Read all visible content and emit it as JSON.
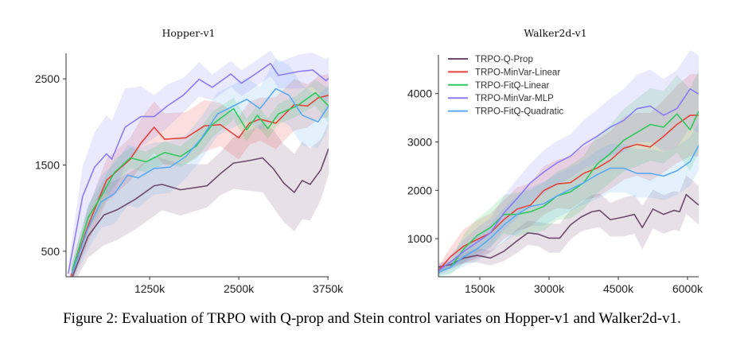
{
  "caption": "Figure 2: Evaluation of TRPO with Q-prop and Stein control variates on Hopper-v1 and Walker2d-v1.",
  "legend": {
    "placement": "top-left",
    "chart": "Walker2d-v1"
  },
  "colors": {
    "TRPO-Q-Prop": "#6e4a6e",
    "TRPO-MinVar-Linear": "#e6433a",
    "TRPO-FitQ-Linear": "#2ec95a",
    "TRPO-MinVar-MLP": "#8b7cf6",
    "TRPO-FitQ-Quadratic": "#5aaaf6"
  },
  "chart_data": [
    {
      "type": "line",
      "title": "Hopper-v1",
      "xlabel": "",
      "ylabel": "",
      "xlim": [
        78,
        3760
      ],
      "ylim": [
        204,
        2796
      ],
      "xticks": [
        1250,
        2500,
        3750
      ],
      "xtick_labels": [
        "1250k",
        "2500k",
        "3750k"
      ],
      "yticks": [
        500,
        1500,
        2500
      ],
      "ytick_labels": [
        "500",
        "1500",
        "2500"
      ],
      "grid": false,
      "series": [
        {
          "name": "TRPO-Q-Prop",
          "x": [
            163,
            386,
            608,
            794,
            1053,
            1313,
            1424,
            1683,
            2055,
            2240,
            2426,
            2649,
            2834,
            2982,
            3131,
            3279,
            3390,
            3501,
            3650,
            3760
          ],
          "y": [
            194,
            673,
            920,
            981,
            1105,
            1259,
            1275,
            1213,
            1259,
            1398,
            1522,
            1552,
            1583,
            1460,
            1290,
            1182,
            1321,
            1275,
            1444,
            1691
          ],
          "band": [
            100,
            250,
            350,
            350,
            350,
            350,
            300,
            300,
            250,
            250,
            300,
            350,
            400,
            450,
            450,
            450,
            450,
            420,
            350,
            300
          ]
        },
        {
          "name": "TRPO-MinVar-Linear",
          "x": [
            145,
            386,
            645,
            831,
            979,
            1127,
            1313,
            1461,
            1758,
            2018,
            2241,
            2500,
            2649,
            2797,
            3019,
            3279,
            3464,
            3612,
            3760
          ],
          "y": [
            210,
            796,
            1321,
            1460,
            1568,
            1753,
            1938,
            1799,
            1815,
            1954,
            1969,
            1815,
            1985,
            2031,
            1985,
            2200,
            2185,
            2278,
            2309
          ],
          "band": [
            100,
            200,
            250,
            250,
            250,
            280,
            300,
            300,
            300,
            300,
            250,
            250,
            250,
            250,
            300,
            300,
            250,
            250,
            250
          ]
        },
        {
          "name": "TRPO-FitQ-Linear",
          "x": [
            163,
            386,
            571,
            757,
            979,
            1201,
            1461,
            1683,
            1906,
            2129,
            2426,
            2611,
            2760,
            2908,
            3056,
            3316,
            3575,
            3760
          ],
          "y": [
            272,
            889,
            1136,
            1414,
            1583,
            1537,
            1645,
            1599,
            1722,
            1969,
            2154,
            1907,
            2077,
            1923,
            2093,
            2185,
            2339,
            2185
          ],
          "band": [
            100,
            150,
            150,
            150,
            120,
            120,
            130,
            120,
            150,
            150,
            130,
            130,
            120,
            120,
            120,
            120,
            150,
            200
          ]
        },
        {
          "name": "TRPO-MinVar-MLP",
          "x": [
            108,
            311,
            478,
            645,
            720,
            905,
            1127,
            1313,
            1498,
            1721,
            1944,
            2129,
            2389,
            2537,
            2760,
            2945,
            3056,
            3353,
            3538,
            3724,
            3760
          ],
          "y": [
            240,
            1136,
            1475,
            1630,
            1568,
            1938,
            2062,
            2062,
            2185,
            2309,
            2494,
            2401,
            2556,
            2448,
            2571,
            2679,
            2540,
            2586,
            2602,
            2478,
            2509
          ],
          "band": [
            100,
            350,
            400,
            450,
            450,
            450,
            350,
            250,
            250,
            200,
            200,
            150,
            150,
            150,
            150,
            150,
            150,
            200,
            200,
            250,
            250
          ]
        },
        {
          "name": "TRPO-FitQ-Quadratic",
          "x": [
            163,
            386,
            571,
            757,
            942,
            1090,
            1313,
            1535,
            1758,
            1980,
            2203,
            2426,
            2611,
            2797,
            3019,
            3205,
            3390,
            3612,
            3760
          ],
          "y": [
            241,
            765,
            1074,
            1167,
            1383,
            1352,
            1460,
            1475,
            1599,
            1815,
            2093,
            2185,
            2262,
            2154,
            2386,
            2309,
            2077,
            2000,
            2185
          ],
          "band": [
            100,
            250,
            300,
            350,
            350,
            350,
            300,
            300,
            250,
            250,
            250,
            250,
            250,
            250,
            350,
            350,
            350,
            300,
            250
          ]
        }
      ]
    },
    {
      "type": "line",
      "title": "Walker2d-v1",
      "xlabel": "",
      "ylabel": "",
      "xlim": [
        603,
        6241
      ],
      "ylim": [
        213,
        4800
      ],
      "xticks": [
        1500,
        3000,
        4500,
        6000
      ],
      "xtick_labels": [
        "1500k",
        "3000k",
        "4500k",
        "6000k"
      ],
      "yticks": [
        1000,
        2000,
        3000,
        4000
      ],
      "ytick_labels": [
        "1000",
        "2000",
        "3000",
        "4000"
      ],
      "grid": false,
      "series": [
        {
          "name": "TRPO-Q-Prop",
          "x": [
            589,
            866,
            1154,
            1443,
            1731,
            2020,
            2308,
            2539,
            2770,
            3000,
            3231,
            3462,
            3693,
            3924,
            4097,
            4328,
            4616,
            4847,
            5020,
            5251,
            5482,
            5712,
            5828,
            5972,
            6241
          ],
          "y": [
            410,
            464,
            600,
            656,
            600,
            738,
            956,
            1120,
            1093,
            1011,
            1011,
            1284,
            1448,
            1557,
            1585,
            1393,
            1448,
            1503,
            1230,
            1612,
            1503,
            1585,
            1557,
            1913,
            1694
          ],
          "band": [
            80,
            80,
            100,
            150,
            150,
            200,
            250,
            250,
            250,
            300,
            300,
            300,
            300,
            350,
            350,
            350,
            400,
            400,
            450,
            400,
            400,
            400,
            400,
            400,
            400
          ]
        },
        {
          "name": "TRPO-MinVar-Linear",
          "x": [
            589,
            866,
            1154,
            1443,
            1731,
            2020,
            2308,
            2597,
            2885,
            3174,
            3462,
            3751,
            4039,
            4328,
            4616,
            4905,
            5193,
            5482,
            5770,
            6058,
            6241
          ],
          "y": [
            328,
            628,
            847,
            984,
            1120,
            1393,
            1612,
            1694,
            1995,
            2131,
            2158,
            2350,
            2459,
            2623,
            2869,
            2951,
            2896,
            3115,
            3361,
            3552,
            3552
          ],
          "band": [
            80,
            200,
            350,
            400,
            400,
            400,
            450,
            450,
            500,
            500,
            550,
            550,
            600,
            600,
            650,
            650,
            700,
            750,
            800,
            850,
            850
          ]
        },
        {
          "name": "TRPO-FitQ-Linear",
          "x": [
            589,
            866,
            1154,
            1443,
            1731,
            2020,
            2308,
            2597,
            2885,
            3174,
            3462,
            3751,
            4039,
            4328,
            4616,
            4905,
            5193,
            5482,
            5770,
            6058,
            6241
          ],
          "y": [
            300,
            410,
            792,
            1066,
            1230,
            1503,
            1503,
            1557,
            1667,
            1885,
            1967,
            2158,
            2541,
            2760,
            3033,
            3197,
            3361,
            3306,
            3579,
            3251,
            3634
          ],
          "band": [
            80,
            150,
            300,
            350,
            400,
            400,
            450,
            450,
            500,
            500,
            550,
            550,
            600,
            600,
            650,
            700,
            750,
            750,
            800,
            850,
            850
          ]
        },
        {
          "name": "TRPO-MinVar-MLP",
          "x": [
            589,
            866,
            1154,
            1443,
            1731,
            2020,
            2308,
            2597,
            2885,
            3174,
            3462,
            3751,
            4039,
            4328,
            4616,
            4905,
            5193,
            5482,
            5770,
            6058,
            6241
          ],
          "y": [
            328,
            519,
            738,
            929,
            1120,
            1530,
            1831,
            2158,
            2377,
            2568,
            2705,
            2951,
            3115,
            3306,
            3443,
            3689,
            3743,
            3552,
            3689,
            4098,
            3989
          ],
          "band": [
            80,
            150,
            250,
            300,
            300,
            350,
            400,
            400,
            450,
            450,
            450,
            500,
            550,
            600,
            650,
            700,
            750,
            750,
            800,
            800,
            800
          ]
        },
        {
          "name": "TRPO-FitQ-Quadratic",
          "x": [
            589,
            866,
            1154,
            1443,
            1731,
            2020,
            2308,
            2597,
            2885,
            3174,
            3462,
            3751,
            4039,
            4328,
            4616,
            4905,
            5193,
            5482,
            5770,
            6058,
            6241
          ],
          "y": [
            300,
            410,
            628,
            792,
            1011,
            1284,
            1503,
            1667,
            1721,
            1885,
            2022,
            2158,
            2322,
            2459,
            2459,
            2350,
            2350,
            2295,
            2404,
            2596,
            2923
          ],
          "band": [
            80,
            120,
            200,
            250,
            300,
            350,
            400,
            400,
            450,
            450,
            450,
            450,
            500,
            500,
            500,
            500,
            500,
            500,
            500,
            500,
            500
          ]
        }
      ]
    }
  ]
}
